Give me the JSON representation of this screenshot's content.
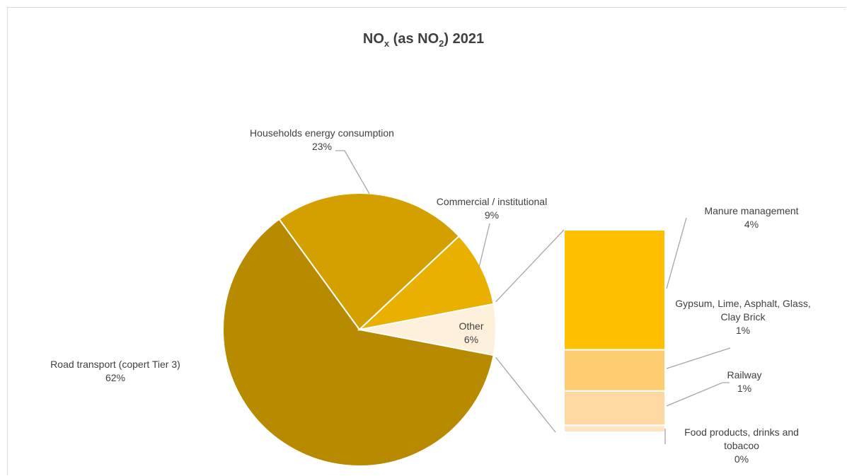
{
  "chart_data": {
    "type": "pie",
    "title_parts": [
      "NO",
      "x",
      " (as NO",
      "2",
      ") 2021"
    ],
    "slices": [
      {
        "label": "Road transport (copert Tier 3)",
        "value": 62,
        "value_label": "62%",
        "color": "#b88a00"
      },
      {
        "label": "Households energy consumption",
        "value": 23,
        "value_label": "23%",
        "color": "#d4a000"
      },
      {
        "label": "Commercial / institutional",
        "value": 9,
        "value_label": "9%",
        "color": "#e9b000"
      },
      {
        "label": "Other",
        "value": 6,
        "value_label": "6%",
        "color": "#fff0dc"
      }
    ],
    "breakdown": {
      "of": "Other",
      "segments": [
        {
          "label_lines": [
            "Manure management"
          ],
          "value": 3.5,
          "value_label": "4%",
          "color": "#fec000"
        },
        {
          "label_lines": [
            "Gypsum, Lime, Asphalt, Glass,",
            "Clay Brick"
          ],
          "value": 1.2,
          "value_label": "1%",
          "color": "#fecd72"
        },
        {
          "label_lines": [
            "Railway"
          ],
          "value": 1.0,
          "value_label": "1%",
          "color": "#fed8a0"
        },
        {
          "label_lines": [
            "Food products, drinks and",
            "tobacoo"
          ],
          "value": 0.2,
          "value_label": "0%",
          "color": "#fee5c2"
        }
      ]
    },
    "legend": "none"
  }
}
